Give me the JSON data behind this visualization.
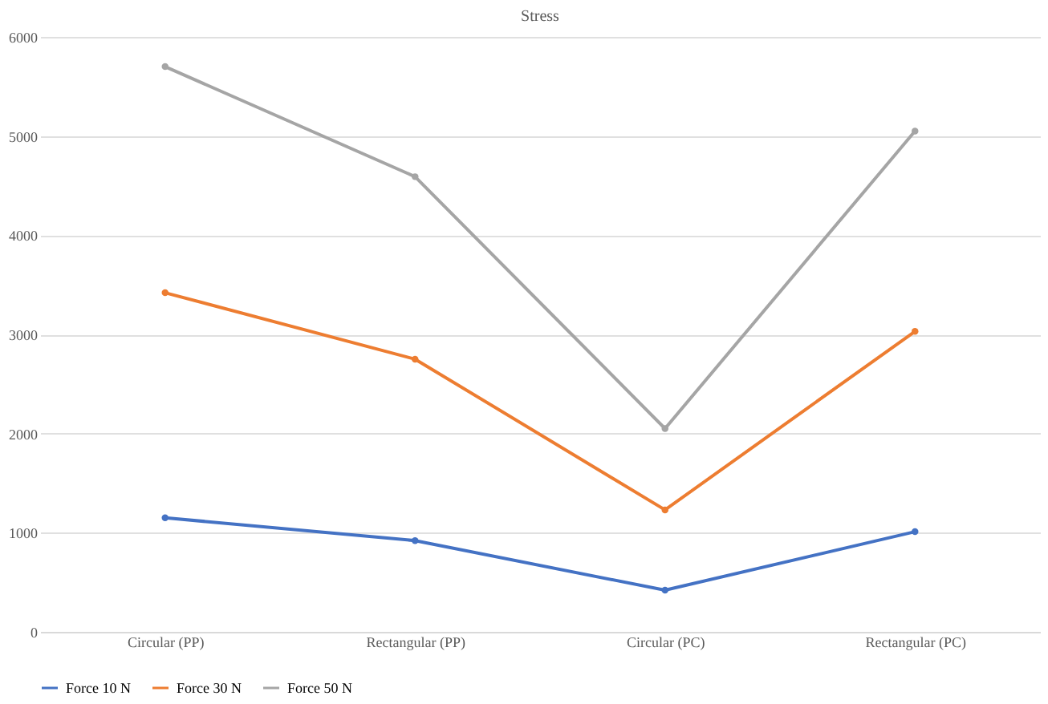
{
  "chart_data": {
    "type": "line",
    "title": "Stress",
    "categories": [
      "Circular (PP)",
      "Rectangular (PP)",
      "Circular (PC)",
      "Rectangular (PC)"
    ],
    "series": [
      {
        "name": "Force 10 N",
        "color": "#4472c4",
        "values": [
          1150,
          920,
          420,
          1010
        ]
      },
      {
        "name": "Force 30 N",
        "color": "#ed7d31",
        "values": [
          3420,
          2750,
          1230,
          3030
        ]
      },
      {
        "name": "Force 50 N",
        "color": "#a5a5a5",
        "values": [
          5700,
          4590,
          2050,
          5050
        ]
      }
    ],
    "ylim": [
      0,
      6000
    ],
    "yticks": [
      0,
      1000,
      2000,
      3000,
      4000,
      5000,
      6000
    ],
    "grid": "y",
    "legend": "bottom",
    "marker": "circle",
    "line_style": "solid"
  }
}
